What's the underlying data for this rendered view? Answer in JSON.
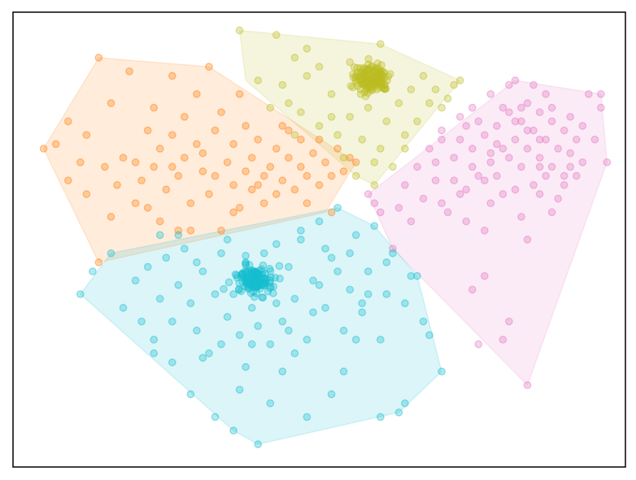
{
  "chart_data": {
    "type": "scatter",
    "title": "",
    "xlabel": "",
    "ylabel": "",
    "xlim": [
      0,
      100
    ],
    "ylim": [
      0,
      100
    ],
    "grid": false,
    "axes_ticks": "hidden",
    "series": [
      {
        "name": "orange-cluster",
        "color": "#ff7f0e",
        "hull": [
          [
            5,
            70
          ],
          [
            14,
            90
          ],
          [
            32,
            88
          ],
          [
            56,
            67
          ],
          [
            51,
            56
          ],
          [
            14,
            45
          ]
        ],
        "dense_center": null,
        "points": [
          [
            5,
            70
          ],
          [
            7,
            71
          ],
          [
            9,
            63
          ],
          [
            9,
            76
          ],
          [
            11,
            67
          ],
          [
            12,
            60
          ],
          [
            12,
            73
          ],
          [
            14,
            90
          ],
          [
            14,
            45
          ],
          [
            15,
            66
          ],
          [
            16,
            80
          ],
          [
            17,
            62
          ],
          [
            18,
            68
          ],
          [
            19,
            87
          ],
          [
            20,
            58
          ],
          [
            21,
            63
          ],
          [
            22,
            74
          ],
          [
            23,
            66
          ],
          [
            23,
            79
          ],
          [
            24,
            70
          ],
          [
            25,
            61
          ],
          [
            26,
            86
          ],
          [
            26,
            73
          ],
          [
            27,
            64
          ],
          [
            27,
            52
          ],
          [
            28,
            77
          ],
          [
            28,
            68
          ],
          [
            29,
            58
          ],
          [
            30,
            71
          ],
          [
            30,
            82
          ],
          [
            31,
            65
          ],
          [
            32,
            60
          ],
          [
            32,
            88
          ],
          [
            33,
            74
          ],
          [
            34,
            78
          ],
          [
            35,
            67
          ],
          [
            36,
            62
          ],
          [
            36,
            71
          ],
          [
            37,
            82
          ],
          [
            37,
            57
          ],
          [
            38,
            65
          ],
          [
            38,
            75
          ],
          [
            39,
            68
          ],
          [
            40,
            62
          ],
          [
            40,
            72
          ],
          [
            41,
            58
          ],
          [
            42,
            66
          ],
          [
            43,
            70
          ],
          [
            44,
            63
          ],
          [
            44,
            75
          ],
          [
            45,
            68
          ],
          [
            46,
            61
          ],
          [
            47,
            66
          ],
          [
            47,
            72
          ],
          [
            48,
            64
          ],
          [
            49,
            69
          ],
          [
            50,
            62
          ],
          [
            51,
            67
          ],
          [
            52,
            56
          ],
          [
            52,
            64
          ],
          [
            53,
            70
          ],
          [
            54,
            65
          ],
          [
            55,
            68
          ],
          [
            56,
            67
          ],
          [
            34,
            52
          ],
          [
            29,
            52
          ],
          [
            36,
            56
          ],
          [
            24,
            54
          ],
          [
            20,
            67
          ],
          [
            43,
            60
          ],
          [
            16,
            55
          ],
          [
            22,
            57
          ],
          [
            39,
            61
          ],
          [
            31,
            69
          ],
          [
            45,
            74
          ],
          [
            41,
            64
          ],
          [
            26,
            66
          ],
          [
            33,
            64
          ],
          [
            48,
            58
          ],
          [
            50,
            72
          ]
        ]
      },
      {
        "name": "olive-cluster",
        "color": "#bcbd22",
        "hull": [
          [
            37,
            96
          ],
          [
            60,
            93
          ],
          [
            73,
            85
          ],
          [
            59,
            62
          ],
          [
            56,
            64
          ],
          [
            38,
            85
          ]
        ],
        "dense_center": [
          58.5,
          85.5
        ],
        "points": [
          [
            37,
            96
          ],
          [
            43,
            95
          ],
          [
            46,
            90
          ],
          [
            48,
            92
          ],
          [
            60,
            93
          ],
          [
            40,
            85
          ],
          [
            44,
            84
          ],
          [
            45,
            80
          ],
          [
            47,
            78
          ],
          [
            48,
            86
          ],
          [
            50,
            75
          ],
          [
            52,
            82
          ],
          [
            53,
            73
          ],
          [
            54,
            68
          ],
          [
            55,
            77
          ],
          [
            56,
            64
          ],
          [
            57,
            72
          ],
          [
            58,
            79
          ],
          [
            59,
            62
          ],
          [
            60,
            70
          ],
          [
            61,
            76
          ],
          [
            62,
            66
          ],
          [
            63,
            80
          ],
          [
            64,
            73
          ],
          [
            65,
            83
          ],
          [
            66,
            76
          ],
          [
            67,
            86
          ],
          [
            68,
            80
          ],
          [
            69,
            83
          ],
          [
            70,
            79
          ],
          [
            71,
            81
          ],
          [
            72,
            84
          ],
          [
            73,
            85
          ],
          [
            50,
            88
          ],
          [
            46,
            73
          ],
          [
            64,
            70
          ],
          [
            55,
            89
          ],
          [
            52,
            77
          ],
          [
            42,
            79
          ],
          [
            59,
            67
          ]
        ]
      },
      {
        "name": "magenta-cluster",
        "color": "#e377c2",
        "hull": [
          [
            58,
            60
          ],
          [
            82,
            85
          ],
          [
            96,
            82
          ],
          [
            97,
            67
          ],
          [
            84,
            18
          ],
          [
            62,
            48
          ]
        ],
        "dense_center": null,
        "points": [
          [
            58,
            60
          ],
          [
            59,
            58
          ],
          [
            60,
            56
          ],
          [
            62,
            48
          ],
          [
            63,
            57
          ],
          [
            64,
            62
          ],
          [
            65,
            54
          ],
          [
            66,
            66
          ],
          [
            67,
            59
          ],
          [
            68,
            70
          ],
          [
            69,
            63
          ],
          [
            70,
            74
          ],
          [
            71,
            56
          ],
          [
            72,
            68
          ],
          [
            73,
            77
          ],
          [
            74,
            61
          ],
          [
            75,
            70
          ],
          [
            75,
            79
          ],
          [
            76,
            64
          ],
          [
            77,
            73
          ],
          [
            77,
            52
          ],
          [
            78,
            82
          ],
          [
            78,
            67
          ],
          [
            79,
            75
          ],
          [
            80,
            70
          ],
          [
            80,
            60
          ],
          [
            81,
            78
          ],
          [
            81,
            84
          ],
          [
            82,
            85
          ],
          [
            82,
            72
          ],
          [
            83,
            66
          ],
          [
            83,
            76
          ],
          [
            84,
            80
          ],
          [
            84,
            70
          ],
          [
            85,
            62
          ],
          [
            85,
            74
          ],
          [
            86,
            78
          ],
          [
            86,
            68
          ],
          [
            87,
            72
          ],
          [
            87,
            82
          ],
          [
            88,
            66
          ],
          [
            88,
            76
          ],
          [
            89,
            70
          ],
          [
            89,
            59
          ],
          [
            90,
            74
          ],
          [
            90,
            64
          ],
          [
            91,
            77
          ],
          [
            91,
            69
          ],
          [
            92,
            72
          ],
          [
            93,
            75
          ],
          [
            94,
            82
          ],
          [
            93,
            67
          ],
          [
            95,
            72
          ],
          [
            96,
            82
          ],
          [
            96,
            79
          ],
          [
            97,
            67
          ],
          [
            88,
            56
          ],
          [
            84,
            50
          ],
          [
            77,
            42
          ],
          [
            75,
            39
          ],
          [
            81,
            32
          ],
          [
            80,
            28
          ],
          [
            84,
            18
          ],
          [
            76,
            27
          ],
          [
            70,
            58
          ],
          [
            72,
            63
          ],
          [
            74,
            54
          ],
          [
            78,
            58
          ],
          [
            82,
            61
          ],
          [
            86,
            60
          ],
          [
            90,
            62
          ],
          [
            73,
            72
          ],
          [
            79,
            64
          ],
          [
            83,
            55
          ],
          [
            87,
            64
          ],
          [
            92,
            64
          ],
          [
            69,
            67
          ],
          [
            76,
            76
          ],
          [
            85,
            84
          ],
          [
            80,
            79
          ],
          [
            77,
            63
          ],
          [
            70,
            72
          ],
          [
            83,
            79
          ],
          [
            75,
            66
          ],
          [
            79,
            71
          ],
          [
            86,
            72
          ],
          [
            81,
            68
          ],
          [
            73,
            60
          ],
          [
            88,
            79
          ],
          [
            82,
            76
          ],
          [
            91,
            66
          ],
          [
            74,
            75
          ],
          [
            84,
            74
          ],
          [
            78,
            69
          ],
          [
            86,
            66
          ]
        ]
      },
      {
        "name": "cyan-cluster",
        "color": "#17becf",
        "hull": [
          [
            11,
            38
          ],
          [
            16,
            47
          ],
          [
            53,
            57
          ],
          [
            59,
            53
          ],
          [
            66,
            42
          ],
          [
            70,
            21
          ],
          [
            63,
            12
          ],
          [
            40,
            5
          ],
          [
            36,
            8
          ]
        ],
        "dense_center": [
          39.5,
          41
        ],
        "points": [
          [
            11,
            38
          ],
          [
            13,
            43
          ],
          [
            16,
            47
          ],
          [
            18,
            35
          ],
          [
            20,
            41
          ],
          [
            21,
            32
          ],
          [
            22,
            44
          ],
          [
            23,
            28
          ],
          [
            24,
            37
          ],
          [
            25,
            46
          ],
          [
            26,
            32
          ],
          [
            27,
            40
          ],
          [
            28,
            48
          ],
          [
            29,
            36
          ],
          [
            30,
            30
          ],
          [
            31,
            43
          ],
          [
            32,
            25
          ],
          [
            33,
            38
          ],
          [
            34,
            47
          ],
          [
            35,
            33
          ],
          [
            36,
            8
          ],
          [
            37,
            29
          ],
          [
            38,
            45
          ],
          [
            39,
            35
          ],
          [
            40,
            5
          ],
          [
            41,
            40
          ],
          [
            42,
            27
          ],
          [
            43,
            49
          ],
          [
            44,
            32
          ],
          [
            45,
            44
          ],
          [
            46,
            37
          ],
          [
            47,
            50
          ],
          [
            48,
            28
          ],
          [
            49,
            41
          ],
          [
            50,
            54
          ],
          [
            51,
            35
          ],
          [
            52,
            46
          ],
          [
            53,
            57
          ],
          [
            54,
            30
          ],
          [
            55,
            39
          ],
          [
            56,
            51
          ],
          [
            57,
            34
          ],
          [
            58,
            43
          ],
          [
            59,
            53
          ],
          [
            60,
            28
          ],
          [
            61,
            38
          ],
          [
            62,
            47
          ],
          [
            63,
            12
          ],
          [
            64,
            36
          ],
          [
            65,
            42
          ],
          [
            66,
            42
          ],
          [
            67,
            32
          ],
          [
            68,
            29
          ],
          [
            70,
            21
          ],
          [
            52,
            16
          ],
          [
            60,
            11
          ],
          [
            37,
            17
          ],
          [
            44,
            21
          ],
          [
            48,
            11
          ],
          [
            26,
            23
          ],
          [
            23,
            25
          ],
          [
            31,
            24
          ],
          [
            54,
            21
          ],
          [
            34,
            27
          ],
          [
            45,
            30
          ],
          [
            56,
            28
          ],
          [
            38,
            22
          ],
          [
            29,
            16
          ],
          [
            64,
            14
          ],
          [
            42,
            14
          ],
          [
            33,
            11
          ],
          [
            57,
            36
          ],
          [
            46,
            25
          ],
          [
            51,
            48
          ],
          [
            35,
            50
          ],
          [
            47,
            52
          ],
          [
            27,
            51
          ],
          [
            40,
            31
          ],
          [
            58,
            38
          ],
          [
            43,
            36
          ],
          [
            24,
            51
          ],
          [
            53,
            43
          ],
          [
            39,
            27
          ],
          [
            49,
            34
          ],
          [
            61,
            45
          ],
          [
            36,
            38
          ],
          [
            50,
            40
          ],
          [
            41,
            47
          ],
          [
            55,
            47
          ],
          [
            30,
            45
          ]
        ]
      }
    ]
  }
}
